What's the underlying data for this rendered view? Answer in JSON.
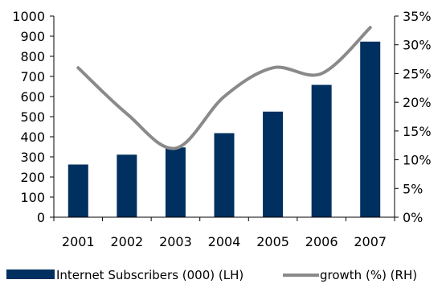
{
  "chart_data": {
    "type": "bar",
    "title": "",
    "categories": [
      "2001",
      "2002",
      "2003",
      "2004",
      "2005",
      "2006",
      "2007"
    ],
    "series": [
      {
        "name": "Internet Subscribers (000) (LH)",
        "type": "bar",
        "axis": "left",
        "color": "#00305f",
        "values": [
          262,
          311,
          347,
          418,
          525,
          658,
          873
        ]
      },
      {
        "name": "growth (%) (RH)",
        "type": "line",
        "axis": "right",
        "color": "#8a8a8a",
        "values": [
          26,
          18,
          12,
          21,
          26,
          25,
          33
        ]
      }
    ],
    "left_axis": {
      "min": 0,
      "max": 1000,
      "ticks": [
        0,
        100,
        200,
        300,
        400,
        500,
        600,
        700,
        800,
        900,
        1000
      ],
      "labels": [
        "0",
        "100",
        "200",
        "300",
        "400",
        "500",
        "600",
        "700",
        "800",
        "900",
        "1000"
      ]
    },
    "right_axis": {
      "min": 0,
      "max": 35,
      "ticks": [
        0,
        5,
        10,
        15,
        20,
        25,
        30,
        35
      ],
      "labels": [
        "0%",
        "5%",
        "10%",
        "15%",
        "20%",
        "25%",
        "30%",
        "35%"
      ]
    },
    "grid": false,
    "legend_position": "bottom"
  }
}
